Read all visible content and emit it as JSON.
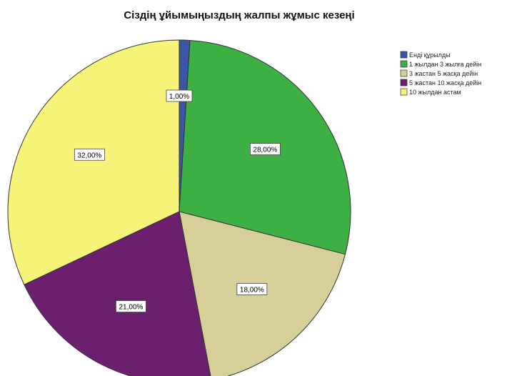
{
  "chart_data": {
    "type": "pie",
    "title": "Сіздің ұйымыңыздың жалпы жұмыс кезеңі",
    "legend_position": "top-right",
    "categories": [
      "Енді құрылды",
      "1 жылдан 3 жылға дейін",
      "3 жастан 5 жасқа дейін",
      "5 жастан 10 жасқа дейін",
      "10 жылдан астам"
    ],
    "values": [
      1,
      28,
      18,
      21,
      32
    ],
    "value_labels": [
      "1,00%",
      "28,00%",
      "18,00%",
      "21,00%",
      "32,00%"
    ],
    "colors": [
      "#3c55a5",
      "#3cb043",
      "#d6cf99",
      "#6b1f6e",
      "#f7f47a"
    ]
  }
}
